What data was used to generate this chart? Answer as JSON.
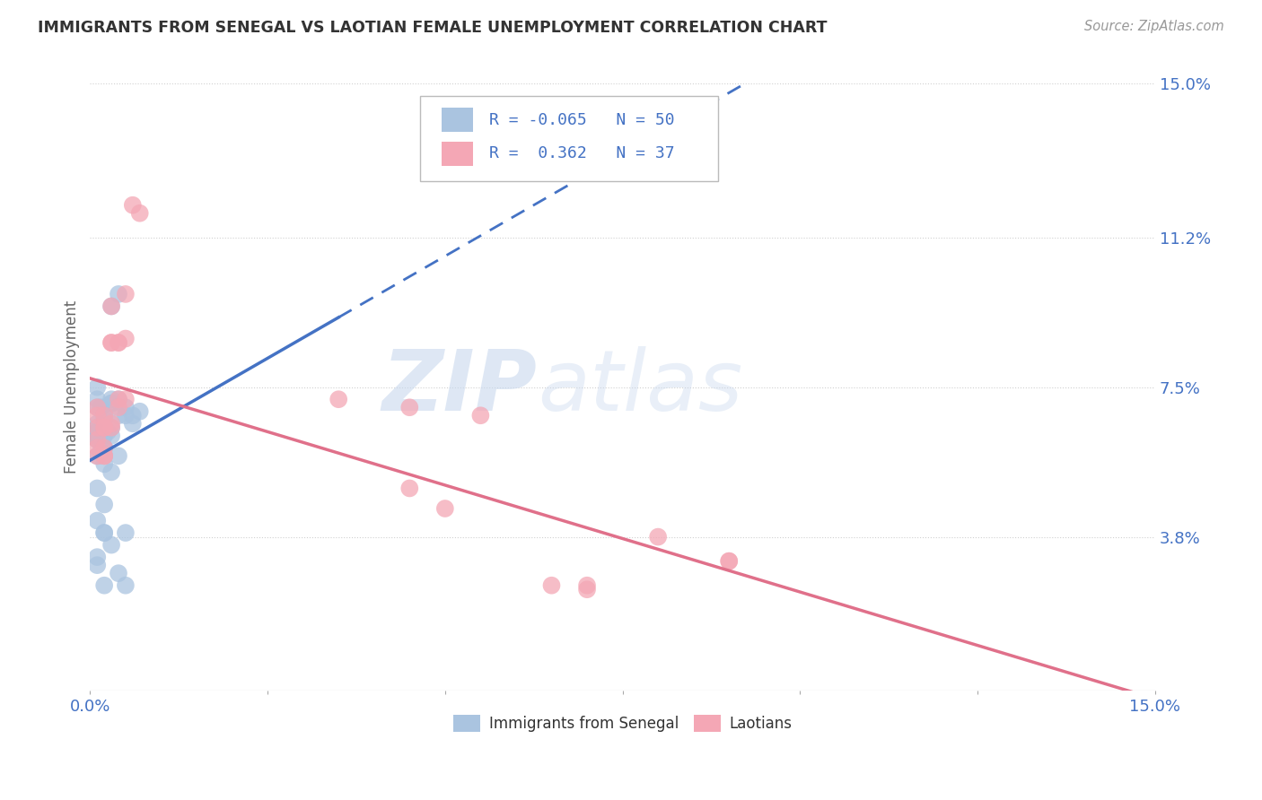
{
  "title": "IMMIGRANTS FROM SENEGAL VS LAOTIAN FEMALE UNEMPLOYMENT CORRELATION CHART",
  "source": "Source: ZipAtlas.com",
  "ylabel": "Female Unemployment",
  "xlim": [
    0.0,
    0.15
  ],
  "ylim": [
    0.0,
    0.15
  ],
  "ytick_labels": [
    "15.0%",
    "11.2%",
    "7.5%",
    "3.8%"
  ],
  "ytick_positions": [
    0.15,
    0.112,
    0.075,
    0.038
  ],
  "background_color": "#ffffff",
  "senegal_color": "#aac4e0",
  "laotian_color": "#f4a7b5",
  "senegal_line_color": "#4472c4",
  "laotian_line_color": "#e0708a",
  "R_senegal": -0.065,
  "N_senegal": 50,
  "R_laotian": 0.362,
  "N_laotian": 37,
  "legend_R_color": "#4472c4",
  "grid_color": "#d0d0d0",
  "watermark": "ZIPatlas",
  "senegal_x": [
    0.001,
    0.003,
    0.002,
    0.004,
    0.005,
    0.001,
    0.002,
    0.001,
    0.0015,
    0.002,
    0.003,
    0.001,
    0.002,
    0.004,
    0.003,
    0.002,
    0.001,
    0.001,
    0.001,
    0.002,
    0.003,
    0.004,
    0.005,
    0.006,
    0.007,
    0.001,
    0.002,
    0.003,
    0.001,
    0.0025,
    0.001,
    0.0015,
    0.002,
    0.003,
    0.004,
    0.001,
    0.001,
    0.002,
    0.001,
    0.003,
    0.002,
    0.004,
    0.005,
    0.001,
    0.002,
    0.003,
    0.006,
    0.001,
    0.002,
    0.005
  ],
  "senegal_y": [
    0.075,
    0.065,
    0.058,
    0.068,
    0.068,
    0.063,
    0.067,
    0.072,
    0.07,
    0.068,
    0.072,
    0.063,
    0.063,
    0.098,
    0.095,
    0.065,
    0.07,
    0.065,
    0.062,
    0.06,
    0.071,
    0.072,
    0.07,
    0.066,
    0.069,
    0.064,
    0.06,
    0.063,
    0.066,
    0.064,
    0.062,
    0.059,
    0.056,
    0.054,
    0.058,
    0.042,
    0.033,
    0.046,
    0.031,
    0.036,
    0.026,
    0.029,
    0.026,
    0.05,
    0.039,
    0.071,
    0.068,
    0.058,
    0.039,
    0.039
  ],
  "laotian_x": [
    0.001,
    0.002,
    0.001,
    0.003,
    0.003,
    0.004,
    0.004,
    0.005,
    0.003,
    0.002,
    0.001,
    0.001,
    0.002,
    0.003,
    0.004,
    0.001,
    0.005,
    0.002,
    0.003,
    0.004,
    0.002,
    0.001,
    0.002,
    0.006,
    0.005,
    0.007,
    0.035,
    0.045,
    0.055,
    0.09,
    0.08,
    0.07,
    0.05,
    0.09,
    0.045,
    0.07,
    0.065
  ],
  "laotian_y": [
    0.062,
    0.065,
    0.06,
    0.095,
    0.086,
    0.086,
    0.086,
    0.087,
    0.086,
    0.058,
    0.068,
    0.065,
    0.065,
    0.065,
    0.072,
    0.07,
    0.072,
    0.068,
    0.066,
    0.07,
    0.06,
    0.058,
    0.058,
    0.12,
    0.098,
    0.118,
    0.072,
    0.07,
    0.068,
    0.032,
    0.038,
    0.025,
    0.045,
    0.032,
    0.05,
    0.026,
    0.026
  ]
}
